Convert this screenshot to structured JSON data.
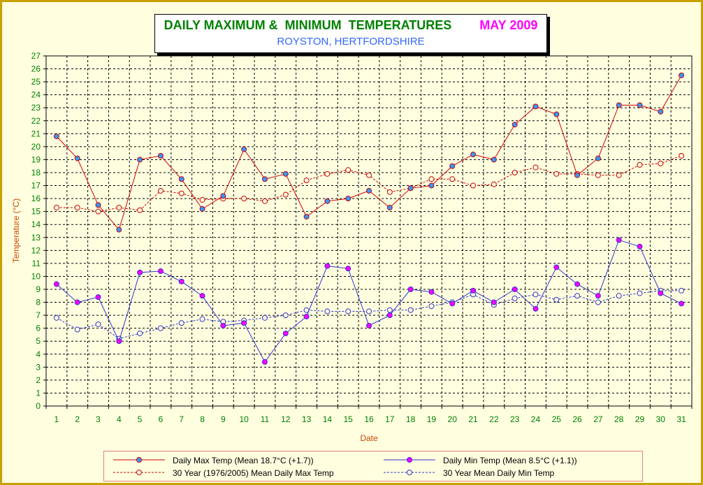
{
  "title": {
    "main": "DAILY MAXIMUM &  MINIMUM  TEMPERATURES",
    "month": "MAY 2009",
    "subtitle": "ROYSTON, HERTFORDSHIRE"
  },
  "colors": {
    "frame_border": "#c8a000",
    "background": "#ffffe0",
    "max_line": "#cc0000",
    "min_line": "#3333cc",
    "axis_text": "#008000",
    "axis_title": "#cc4400",
    "max_marker": "#3399ff",
    "min_marker": "#ff00ff"
  },
  "legend": {
    "max": "Daily Max Temp (Mean 18.7°C (+1.7))",
    "min": "Daily Min Temp (Mean 8.5°C (+1.1))",
    "max_30yr": "30 Year (1976/2005) Mean Daily Max Temp",
    "min_30yr": "30 Year Mean Daily Min Temp"
  },
  "chart_data": {
    "type": "line",
    "xlabel": "Date",
    "ylabel": "Temperature (°C)",
    "ylim": [
      0,
      27
    ],
    "grid": true,
    "legend_position": "bottom",
    "x": [
      1,
      2,
      3,
      4,
      5,
      6,
      7,
      8,
      9,
      10,
      11,
      12,
      13,
      14,
      15,
      16,
      17,
      18,
      19,
      20,
      21,
      22,
      23,
      24,
      25,
      26,
      27,
      28,
      29,
      30,
      31
    ],
    "series": [
      {
        "name": "Daily Max Temp (Mean 18.7°C (+1.7))",
        "style": "solid",
        "values": [
          20.8,
          19.1,
          15.5,
          13.6,
          19.0,
          19.3,
          17.5,
          15.2,
          16.2,
          19.8,
          17.5,
          17.9,
          14.6,
          15.8,
          16.0,
          16.6,
          15.3,
          16.8,
          17.0,
          18.5,
          19.4,
          19.0,
          21.7,
          23.1,
          22.5,
          17.8,
          19.1,
          23.2,
          23.2,
          22.7,
          25.5
        ]
      },
      {
        "name": "30 Year (1976/2005) Mean Daily Max Temp",
        "style": "dashed",
        "values": [
          15.3,
          15.3,
          15.0,
          15.3,
          15.1,
          16.6,
          16.4,
          15.9,
          16.0,
          16.0,
          15.8,
          16.3,
          17.4,
          17.9,
          18.2,
          17.8,
          16.5,
          16.8,
          17.5,
          17.5,
          17.0,
          17.1,
          18.0,
          18.4,
          17.9,
          17.9,
          17.8,
          17.8,
          18.6,
          18.7,
          19.3
        ]
      },
      {
        "name": "Daily Min Temp (Mean 8.5°C (+1.1))",
        "style": "solid",
        "values": [
          9.4,
          8.0,
          8.4,
          5.0,
          10.3,
          10.4,
          9.6,
          8.5,
          6.2,
          6.4,
          3.4,
          5.6,
          6.9,
          10.8,
          10.6,
          6.2,
          7.0,
          9.0,
          8.8,
          7.9,
          8.9,
          8.0,
          9.0,
          7.5,
          10.7,
          9.4,
          8.5,
          12.8,
          12.3,
          8.7,
          7.9
        ]
      },
      {
        "name": "30 Year Mean Daily Min Temp",
        "style": "dashed",
        "values": [
          6.8,
          5.9,
          6.3,
          5.2,
          5.6,
          6.0,
          6.4,
          6.7,
          6.5,
          6.6,
          6.8,
          7.0,
          7.4,
          7.3,
          7.3,
          7.3,
          7.4,
          7.4,
          7.7,
          8.0,
          8.6,
          7.8,
          8.3,
          8.6,
          8.2,
          8.5,
          8.0,
          8.5,
          8.7,
          8.9,
          8.9
        ]
      }
    ]
  }
}
